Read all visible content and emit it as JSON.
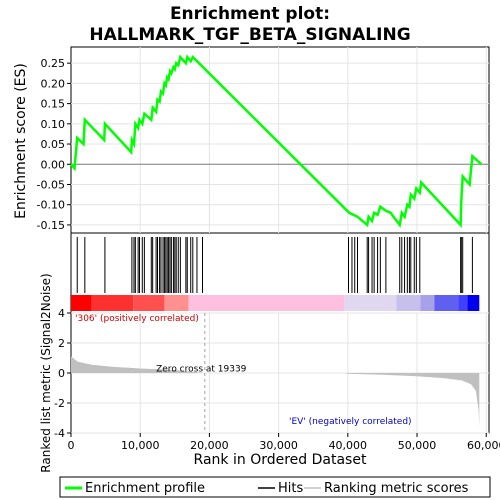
{
  "chart_data": {
    "type": "line",
    "title_line1": "Enrichment plot:",
    "title_line2": "HALLMARK_TGF_BETA_SIGNALING",
    "xlabel": "Rank in Ordered Dataset",
    "ylabel_top": "Enrichment score (ES)",
    "ylabel_bottom": "Ranked list metric (Signal2Noise)",
    "xlim": [
      0,
      60000
    ],
    "ylim_es": [
      -0.17,
      0.29
    ],
    "ylim_metric": [
      -4,
      4
    ],
    "x_ticks": [
      0,
      10000,
      20000,
      30000,
      40000,
      50000,
      60000
    ],
    "x_tick_labels": [
      "0",
      "10,000",
      "20,000",
      "30,000",
      "40,000",
      "50,000",
      "60,000"
    ],
    "es_ticks": [
      -0.15,
      -0.1,
      -0.05,
      0.0,
      0.05,
      0.1,
      0.15,
      0.2,
      0.25
    ],
    "es_tick_labels": [
      "-0.15",
      "-0.10",
      "-0.05",
      "0.00",
      "0.05",
      "0.10",
      "0.15",
      "0.20",
      "0.25"
    ],
    "metric_ticks": [
      -4,
      -2,
      0,
      2,
      4
    ],
    "metric_tick_labels": [
      "-4",
      "-2",
      "0",
      "2",
      "4"
    ],
    "es_profile": {
      "name": "Enrichment profile",
      "color": "#00ff00",
      "points": [
        [
          0,
          0.0
        ],
        [
          500,
          -0.01
        ],
        [
          900,
          0.065
        ],
        [
          1800,
          0.05
        ],
        [
          2000,
          0.11
        ],
        [
          4800,
          0.06
        ],
        [
          4900,
          0.1
        ],
        [
          8700,
          0.03
        ],
        [
          8800,
          0.06
        ],
        [
          9100,
          0.05
        ],
        [
          9300,
          0.1
        ],
        [
          9700,
          0.09
        ],
        [
          9900,
          0.11
        ],
        [
          10300,
          0.1
        ],
        [
          10600,
          0.125
        ],
        [
          11600,
          0.11
        ],
        [
          11800,
          0.14
        ],
        [
          12300,
          0.13
        ],
        [
          12500,
          0.16
        ],
        [
          12800,
          0.155
        ],
        [
          13000,
          0.18
        ],
        [
          13300,
          0.175
        ],
        [
          13500,
          0.2
        ],
        [
          13700,
          0.195
        ],
        [
          13900,
          0.215
        ],
        [
          14100,
          0.21
        ],
        [
          14300,
          0.23
        ],
        [
          14500,
          0.225
        ],
        [
          14800,
          0.24
        ],
        [
          15000,
          0.235
        ],
        [
          15200,
          0.25
        ],
        [
          15500,
          0.245
        ],
        [
          15800,
          0.265
        ],
        [
          16600,
          0.25
        ],
        [
          16800,
          0.265
        ],
        [
          17300,
          0.255
        ],
        [
          17600,
          0.265
        ],
        [
          18200,
          0.255
        ],
        [
          40200,
          -0.12
        ],
        [
          41400,
          -0.13
        ],
        [
          42800,
          -0.15
        ],
        [
          43000,
          -0.13
        ],
        [
          43500,
          -0.14
        ],
        [
          43800,
          -0.12
        ],
        [
          44300,
          -0.125
        ],
        [
          44700,
          -0.105
        ],
        [
          45500,
          -0.115
        ],
        [
          46200,
          -0.12
        ],
        [
          46600,
          -0.13
        ],
        [
          47500,
          -0.15
        ],
        [
          47800,
          -0.12
        ],
        [
          48200,
          -0.13
        ],
        [
          48600,
          -0.1
        ],
        [
          48900,
          -0.105
        ],
        [
          49100,
          -0.075
        ],
        [
          49600,
          -0.085
        ],
        [
          49900,
          -0.06
        ],
        [
          50400,
          -0.07
        ],
        [
          50600,
          -0.045
        ],
        [
          56300,
          -0.15
        ],
        [
          56400,
          -0.09
        ],
        [
          56600,
          -0.03
        ],
        [
          57600,
          -0.05
        ],
        [
          58000,
          0.02
        ],
        [
          59300,
          0.0
        ]
      ]
    },
    "hits": {
      "name": "Hits",
      "positions": [
        900,
        2000,
        4900,
        8800,
        9100,
        9300,
        9700,
        9900,
        10300,
        10600,
        11600,
        11800,
        12300,
        12500,
        12800,
        13000,
        13300,
        13500,
        13700,
        13900,
        14100,
        14300,
        14500,
        14800,
        15000,
        15200,
        15500,
        15800,
        16600,
        16800,
        17300,
        17600,
        18200,
        19000,
        40100,
        40600,
        41000,
        41400,
        42800,
        43000,
        43500,
        43800,
        44300,
        44700,
        45500,
        47500,
        47800,
        48200,
        48600,
        48900,
        49100,
        49600,
        49900,
        50400,
        56300,
        56400,
        56600,
        58000
      ]
    },
    "ranking_metric": {
      "name": "Ranking metric scores",
      "points": [
        [
          0,
          1.1
        ],
        [
          1000,
          0.75
        ],
        [
          3000,
          0.55
        ],
        [
          6000,
          0.42
        ],
        [
          10000,
          0.3
        ],
        [
          15000,
          0.2
        ],
        [
          19339,
          0.0
        ],
        [
          39500,
          0.0
        ],
        [
          40000,
          -0.05
        ],
        [
          45000,
          -0.12
        ],
        [
          50000,
          -0.22
        ],
        [
          54000,
          -0.35
        ],
        [
          56500,
          -0.5
        ],
        [
          57800,
          -0.75
        ],
        [
          58500,
          -1.2
        ],
        [
          58900,
          -2.5
        ],
        [
          59000,
          -3.6
        ]
      ]
    },
    "zero_cross_label": "Zero cross at 19339",
    "zero_cross_x": 19339,
    "positive_label": "'306' (positively correlated)",
    "negative_label": "'EV' (negatively correlated)",
    "legend": [
      "Enrichment profile",
      "Hits",
      "Ranking metric scores"
    ],
    "colors": {
      "profile": "#00ff00",
      "positive_text": "#cc0000",
      "negative_text": "#0000cc",
      "metric_fill": "#c0c0c0",
      "heat_red": "#ff0000",
      "heat_pink": "#ffc0e0",
      "heat_blue": "#0000ff",
      "heat_lavender": "#d0c8f0"
    }
  }
}
